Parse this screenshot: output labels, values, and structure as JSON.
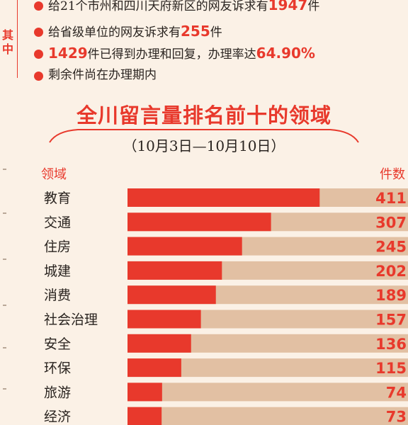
{
  "side_label": "其中",
  "stats": [
    {
      "pre": "给21个市州和四川天府新区的网友诉求有",
      "num": "1947",
      "post": "件"
    },
    {
      "pre": "给省级单位的网友诉求有",
      "num": "255",
      "post": "件"
    },
    {
      "pre": "",
      "num": "1429",
      "post": "件已得到办理和回复，办理率达"
    },
    {
      "pre": "剩余件尚在办理期内",
      "num": "",
      "post": ""
    }
  ],
  "stat3_rate": "64.90%",
  "colors": {
    "accent": "#e8392c",
    "bar_bg": "#e2c0a3",
    "page_bg": "#fbf1e6"
  },
  "chart_data": {
    "type": "bar",
    "orientation": "horizontal",
    "title": "全川留言量排名前十的领域",
    "subtitle": "（10月3日—10月10日）",
    "category_header": "领域",
    "value_header": "件数",
    "categories": [
      "教育",
      "交通",
      "住房",
      "城建",
      "消费",
      "社会治理",
      "安全",
      "环保",
      "旅游",
      "经济"
    ],
    "values": [
      411,
      307,
      245,
      202,
      189,
      157,
      136,
      115,
      74,
      73
    ],
    "xlim": [
      0,
      600
    ],
    "grid": false,
    "legend": "none"
  }
}
